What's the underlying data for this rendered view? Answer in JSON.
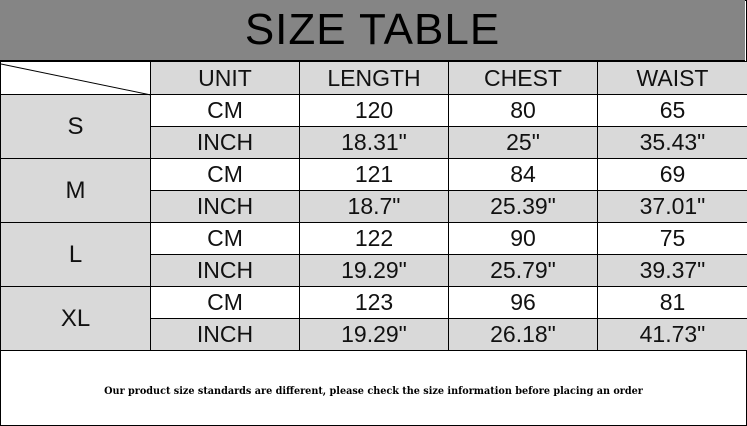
{
  "title": "SIZE TABLE",
  "headers": [
    "UNIT",
    "LENGTH",
    "CHEST",
    "WAIST"
  ],
  "sizes": [
    {
      "size": "S",
      "rows": [
        [
          "CM",
          "120",
          "80",
          "65"
        ],
        [
          "INCH",
          "18.31\"",
          "25\"",
          "35.43\""
        ]
      ]
    },
    {
      "size": "M",
      "rows": [
        [
          "CM",
          "121",
          "84",
          "69"
        ],
        [
          "INCH",
          "18.7\"",
          "25.39\"",
          "37.01\""
        ]
      ]
    },
    {
      "size": "L",
      "rows": [
        [
          "CM",
          "122",
          "90",
          "75"
        ],
        [
          "INCH",
          "19.29\"",
          "25.79\"",
          "39.37\""
        ]
      ]
    },
    {
      "size": "XL",
      "rows": [
        [
          "CM",
          "123",
          "96",
          "81"
        ],
        [
          "INCH",
          "19.29\"",
          "26.18\"",
          "41.73\""
        ]
      ]
    }
  ],
  "footer_note": "Our product size standards are different, please check the size information before placing an order",
  "colors": {
    "title_bg": "#858585",
    "cell_gray": "#d9d9d9"
  }
}
